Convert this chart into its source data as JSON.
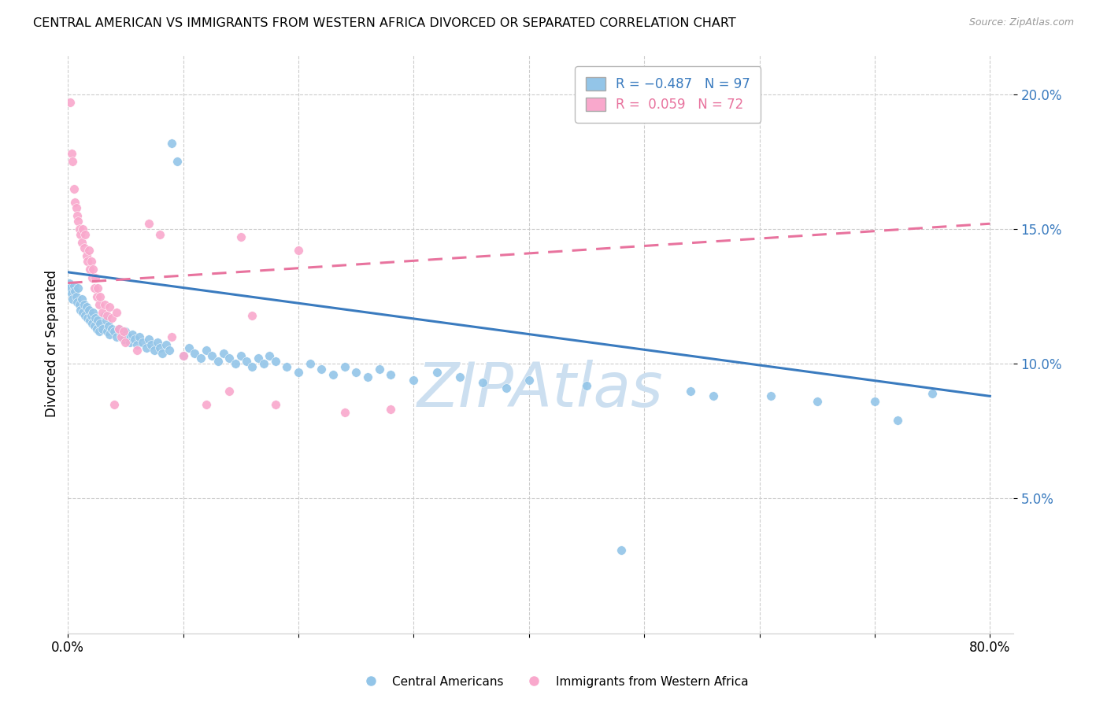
{
  "title": "CENTRAL AMERICAN VS IMMIGRANTS FROM WESTERN AFRICA DIVORCED OR SEPARATED CORRELATION CHART",
  "source": "Source: ZipAtlas.com",
  "ylabel": "Divorced or Separated",
  "watermark": "ZIPAtlas",
  "blue_scatter": [
    [
      0.001,
      0.13
    ],
    [
      0.002,
      0.128
    ],
    [
      0.003,
      0.126
    ],
    [
      0.004,
      0.124
    ],
    [
      0.005,
      0.129
    ],
    [
      0.006,
      0.127
    ],
    [
      0.007,
      0.125
    ],
    [
      0.008,
      0.123
    ],
    [
      0.009,
      0.128
    ],
    [
      0.01,
      0.122
    ],
    [
      0.011,
      0.12
    ],
    [
      0.012,
      0.124
    ],
    [
      0.013,
      0.119
    ],
    [
      0.014,
      0.122
    ],
    [
      0.015,
      0.118
    ],
    [
      0.016,
      0.121
    ],
    [
      0.017,
      0.117
    ],
    [
      0.018,
      0.12
    ],
    [
      0.019,
      0.116
    ],
    [
      0.02,
      0.118
    ],
    [
      0.021,
      0.115
    ],
    [
      0.022,
      0.119
    ],
    [
      0.023,
      0.114
    ],
    [
      0.024,
      0.117
    ],
    [
      0.025,
      0.113
    ],
    [
      0.026,
      0.116
    ],
    [
      0.027,
      0.112
    ],
    [
      0.028,
      0.115
    ],
    [
      0.03,
      0.113
    ],
    [
      0.032,
      0.118
    ],
    [
      0.033,
      0.116
    ],
    [
      0.034,
      0.112
    ],
    [
      0.035,
      0.114
    ],
    [
      0.036,
      0.111
    ],
    [
      0.038,
      0.113
    ],
    [
      0.04,
      0.112
    ],
    [
      0.042,
      0.11
    ],
    [
      0.044,
      0.113
    ],
    [
      0.046,
      0.111
    ],
    [
      0.048,
      0.109
    ],
    [
      0.05,
      0.112
    ],
    [
      0.052,
      0.11
    ],
    [
      0.054,
      0.108
    ],
    [
      0.056,
      0.111
    ],
    [
      0.058,
      0.109
    ],
    [
      0.06,
      0.107
    ],
    [
      0.062,
      0.11
    ],
    [
      0.065,
      0.108
    ],
    [
      0.068,
      0.106
    ],
    [
      0.07,
      0.109
    ],
    [
      0.072,
      0.107
    ],
    [
      0.075,
      0.105
    ],
    [
      0.078,
      0.108
    ],
    [
      0.08,
      0.106
    ],
    [
      0.082,
      0.104
    ],
    [
      0.085,
      0.107
    ],
    [
      0.088,
      0.105
    ],
    [
      0.09,
      0.182
    ],
    [
      0.095,
      0.175
    ],
    [
      0.1,
      0.103
    ],
    [
      0.105,
      0.106
    ],
    [
      0.11,
      0.104
    ],
    [
      0.115,
      0.102
    ],
    [
      0.12,
      0.105
    ],
    [
      0.125,
      0.103
    ],
    [
      0.13,
      0.101
    ],
    [
      0.135,
      0.104
    ],
    [
      0.14,
      0.102
    ],
    [
      0.145,
      0.1
    ],
    [
      0.15,
      0.103
    ],
    [
      0.155,
      0.101
    ],
    [
      0.16,
      0.099
    ],
    [
      0.165,
      0.102
    ],
    [
      0.17,
      0.1
    ],
    [
      0.175,
      0.103
    ],
    [
      0.18,
      0.101
    ],
    [
      0.19,
      0.099
    ],
    [
      0.2,
      0.097
    ],
    [
      0.21,
      0.1
    ],
    [
      0.22,
      0.098
    ],
    [
      0.23,
      0.096
    ],
    [
      0.24,
      0.099
    ],
    [
      0.25,
      0.097
    ],
    [
      0.26,
      0.095
    ],
    [
      0.27,
      0.098
    ],
    [
      0.28,
      0.096
    ],
    [
      0.3,
      0.094
    ],
    [
      0.32,
      0.097
    ],
    [
      0.34,
      0.095
    ],
    [
      0.36,
      0.093
    ],
    [
      0.38,
      0.091
    ],
    [
      0.4,
      0.094
    ],
    [
      0.45,
      0.092
    ],
    [
      0.48,
      0.031
    ],
    [
      0.54,
      0.09
    ],
    [
      0.56,
      0.088
    ],
    [
      0.61,
      0.088
    ],
    [
      0.65,
      0.086
    ],
    [
      0.7,
      0.086
    ],
    [
      0.72,
      0.079
    ],
    [
      0.75,
      0.089
    ]
  ],
  "pink_scatter": [
    [
      0.002,
      0.197
    ],
    [
      0.003,
      0.178
    ],
    [
      0.004,
      0.175
    ],
    [
      0.005,
      0.165
    ],
    [
      0.006,
      0.16
    ],
    [
      0.007,
      0.158
    ],
    [
      0.008,
      0.155
    ],
    [
      0.009,
      0.153
    ],
    [
      0.01,
      0.15
    ],
    [
      0.011,
      0.148
    ],
    [
      0.012,
      0.145
    ],
    [
      0.013,
      0.15
    ],
    [
      0.014,
      0.143
    ],
    [
      0.015,
      0.148
    ],
    [
      0.016,
      0.14
    ],
    [
      0.017,
      0.138
    ],
    [
      0.018,
      0.142
    ],
    [
      0.019,
      0.135
    ],
    [
      0.02,
      0.138
    ],
    [
      0.021,
      0.132
    ],
    [
      0.022,
      0.135
    ],
    [
      0.023,
      0.128
    ],
    [
      0.024,
      0.132
    ],
    [
      0.025,
      0.125
    ],
    [
      0.026,
      0.128
    ],
    [
      0.027,
      0.122
    ],
    [
      0.028,
      0.125
    ],
    [
      0.03,
      0.119
    ],
    [
      0.032,
      0.122
    ],
    [
      0.034,
      0.118
    ],
    [
      0.036,
      0.121
    ],
    [
      0.038,
      0.117
    ],
    [
      0.04,
      0.085
    ],
    [
      0.042,
      0.119
    ],
    [
      0.044,
      0.113
    ],
    [
      0.046,
      0.11
    ],
    [
      0.048,
      0.112
    ],
    [
      0.05,
      0.108
    ],
    [
      0.06,
      0.105
    ],
    [
      0.07,
      0.152
    ],
    [
      0.08,
      0.148
    ],
    [
      0.09,
      0.11
    ],
    [
      0.1,
      0.103
    ],
    [
      0.12,
      0.085
    ],
    [
      0.14,
      0.09
    ],
    [
      0.15,
      0.147
    ],
    [
      0.16,
      0.118
    ],
    [
      0.18,
      0.085
    ],
    [
      0.2,
      0.142
    ],
    [
      0.24,
      0.082
    ],
    [
      0.28,
      0.083
    ]
  ],
  "blue_line": {
    "x0": 0.0,
    "y0": 0.134,
    "x1": 0.8,
    "y1": 0.088
  },
  "pink_line": {
    "x0": 0.0,
    "y0": 0.13,
    "x1": 0.8,
    "y1": 0.152
  },
  "xlim": [
    0.0,
    0.82
  ],
  "ylim": [
    0.0,
    0.215
  ],
  "yticks": [
    0.05,
    0.1,
    0.15,
    0.2
  ],
  "ytick_labels": [
    "5.0%",
    "10.0%",
    "15.0%",
    "20.0%"
  ],
  "xticks": [
    0.0,
    0.1,
    0.2,
    0.3,
    0.4,
    0.5,
    0.6,
    0.7,
    0.8
  ],
  "xtick_labels": [
    "0.0%",
    "",
    "",
    "",
    "",
    "",
    "",
    "",
    "80.0%"
  ],
  "blue_color": "#93c5e8",
  "pink_color": "#f9a8cc",
  "blue_line_color": "#3a7bbf",
  "pink_line_color": "#e8739e",
  "watermark_color": "#ccdff0",
  "bg_color": "#ffffff",
  "grid_color": "#cccccc"
}
